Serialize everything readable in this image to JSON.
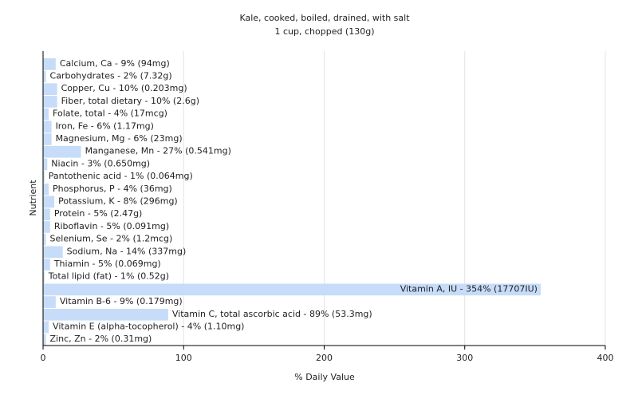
{
  "chart_data": {
    "type": "hbar",
    "title": "Kale, cooked, boiled, drained, with salt",
    "subtitle": "1 cup, chopped (130g)",
    "x_label": "% Daily Value",
    "y_label": "Nutrient",
    "color": "#c6dcf8",
    "values": [
      9,
      2,
      10,
      10,
      4,
      6,
      6,
      27,
      3,
      1,
      4,
      8,
      5,
      5,
      2,
      14,
      5,
      1,
      354,
      9,
      89,
      4,
      2
    ],
    "value_labels": [
      "Calcium, Ca - 9% (94mg)",
      "Carbohydrates - 2% (7.32g)",
      "Copper, Cu - 10% (0.203mg)",
      "Fiber, total dietary - 10% (2.6g)",
      "Folate, total - 4% (17mcg)",
      "Iron, Fe - 6% (1.17mg)",
      "Magnesium, Mg - 6% (23mg)",
      "Manganese, Mn - 27% (0.541mg)",
      "Niacin - 3% (0.650mg)",
      "Pantothenic acid - 1% (0.064mg)",
      "Phosphorus, P - 4% (36mg)",
      "Potassium, K - 8% (296mg)",
      "Protein - 5% (2.47g)",
      "Riboflavin - 5% (0.091mg)",
      "Selenium, Se - 2% (1.2mcg)",
      "Sodium, Na - 14% (337mg)",
      "Thiamin - 5% (0.069mg)",
      "Total lipid (fat) - 1% (0.52g)",
      "Vitamin A, IU - 354% (17707IU)",
      "Vitamin B-6 - 9% (0.179mg)",
      "Vitamin C, total ascorbic acid - 89% (53.3mg)",
      "Vitamin E (alpha-tocopherol) - 4% (1.10mg)",
      "Zinc, Zn - 2% (0.31mg)"
    ],
    "xlim": [
      0,
      400
    ],
    "xticks": [
      0,
      100,
      200,
      300,
      400
    ],
    "grid": true
  }
}
